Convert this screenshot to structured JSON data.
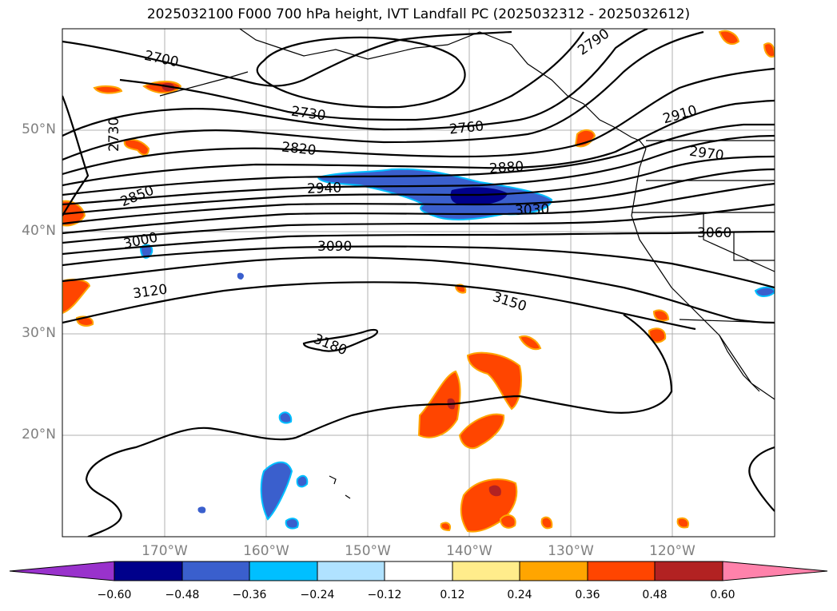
{
  "title": "2025032100 F000 700 hPa height, IVT Landfall PC (2025032312 - 2025032612)",
  "map": {
    "lat_labels": [
      "50°N",
      "40°N",
      "30°N",
      "20°N"
    ],
    "lon_labels": [
      "170°W",
      "160°W",
      "150°W",
      "140°W",
      "130°W",
      "120°W"
    ],
    "contour_labels": [
      "2700",
      "2790",
      "2730",
      "2760",
      "2910",
      "2730",
      "2820",
      "2880",
      "2970",
      "2850",
      "2940",
      "3030",
      "3000",
      "3060",
      "3090",
      "3120",
      "3150",
      "3180"
    ],
    "contour_color": "#000000",
    "grid_color": "#b0b0b0"
  },
  "colorbar": {
    "ticks": [
      "−0.60",
      "−0.48",
      "−0.36",
      "−0.24",
      "−0.12",
      "0.12",
      "0.24",
      "0.36",
      "0.48",
      "0.60"
    ],
    "colors": [
      "#9932cc",
      "#00008b",
      "#3a5fcd",
      "#00bfff",
      "#b0e2ff",
      "#ffffff",
      "#ffec8b",
      "#ffa500",
      "#ff4500",
      "#b22222",
      "#ff82ab"
    ]
  }
}
